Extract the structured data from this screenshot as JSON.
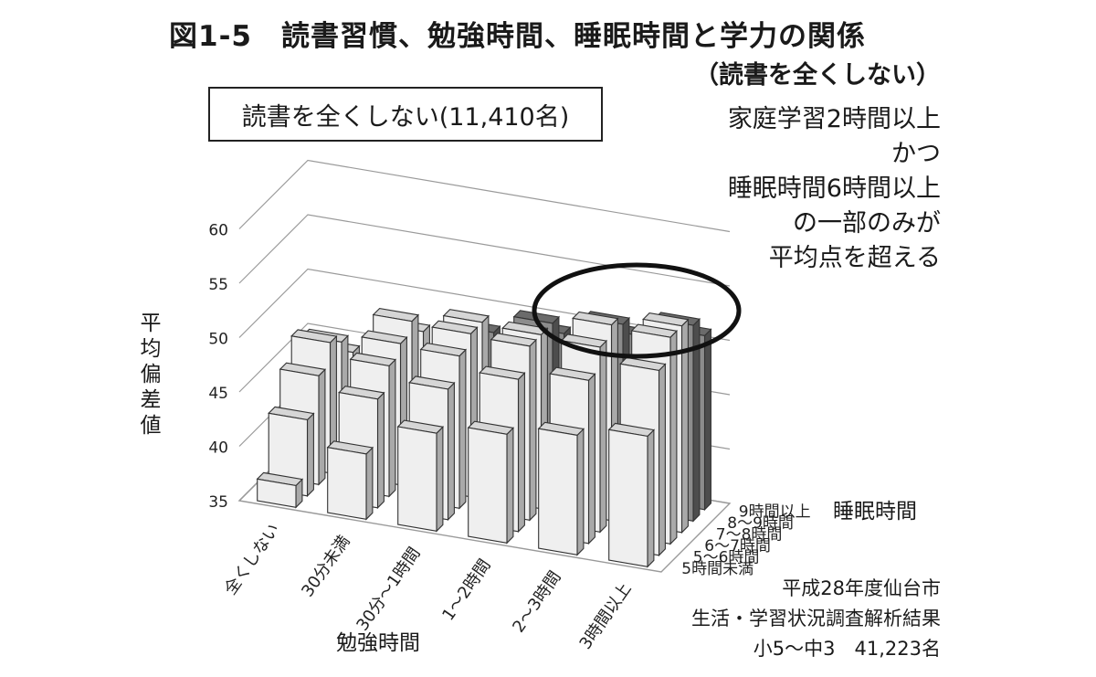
{
  "figure": {
    "title": "図1-5　読書習慣、勉強時間、睡眠時間と学力の関係",
    "subtitle": "（読書を全くしない）",
    "box_label": "読書を全くしない(11,410名)",
    "annotation_lines": [
      "家庭学習2時間以上",
      "かつ",
      "睡眠時間6時間以上",
      "の一部のみが",
      "平均点を超える"
    ],
    "source_lines": [
      "平成28年度仙台市",
      "生活・学習状況調査解析結果",
      "小5～中3　41,223名"
    ]
  },
  "chart_data": {
    "type": "bar",
    "subtype": "3d-bar",
    "title": "図1-5　読書習慣、勉強時間、睡眠時間と学力の関係",
    "ylabel": "平均偏差値",
    "xlabel": "勉強時間",
    "zlabel": "睡眠時間",
    "ylim": [
      35,
      60
    ],
    "yticks": [
      35,
      40,
      45,
      50,
      55,
      60
    ],
    "grid": true,
    "categories": [
      "全くしない",
      "30分未満",
      "30分～1時間",
      "1～2時間",
      "2～3時間",
      "3時間以上"
    ],
    "series": [
      {
        "name": "5時間未満",
        "values": [
          37,
          41,
          44,
          45,
          46,
          47
        ]
      },
      {
        "name": "5～6時間",
        "values": [
          42,
          45,
          47,
          49,
          50,
          52
        ]
      },
      {
        "name": "6～7時間",
        "values": [
          45,
          47,
          49,
          51,
          52,
          54
        ]
      },
      {
        "name": "7～8時間",
        "values": [
          47,
          48,
          50,
          51,
          53,
          54
        ]
      },
      {
        "name": "8～9時間",
        "values": [
          46,
          49,
          50,
          51,
          52,
          53
        ]
      },
      {
        "name": "9時間以上",
        "values": [
          44,
          47,
          48,
          49,
          50,
          51
        ]
      }
    ],
    "highlighted": [
      [
        3,
        4
      ],
      [
        4,
        4
      ],
      [
        4,
        5
      ],
      [
        5,
        4
      ],
      [
        5,
        5
      ],
      [
        2,
        5
      ],
      [
        3,
        5
      ]
    ],
    "colors": {
      "normal_front": "#efefef",
      "normal_top": "#d6d6d6",
      "normal_side": "#a9a9a9",
      "highlight_front": "#8c8c8c",
      "highlight_top": "#6b6b6b",
      "highlight_side": "#4d4d4d",
      "grid": "#9a9a9a",
      "ellipse": "#111111"
    }
  }
}
